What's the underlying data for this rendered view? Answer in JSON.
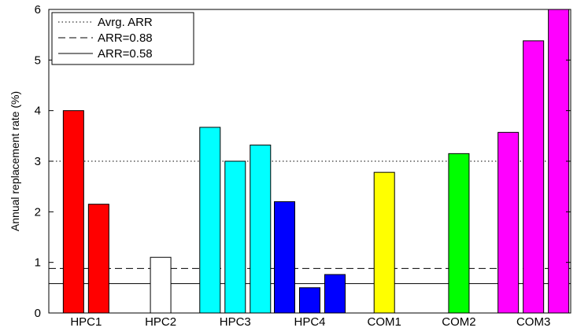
{
  "chart_data": {
    "type": "bar",
    "ylabel": "Annual replacement rate (%)",
    "xlabel": "",
    "ylim": [
      0,
      6
    ],
    "yticks": [
      0,
      1,
      2,
      3,
      4,
      5,
      6
    ],
    "grid": false,
    "legend_position": "top-left",
    "groups": [
      {
        "label": "HPC1",
        "color": "#ff0000",
        "values": [
          4.0,
          2.15
        ]
      },
      {
        "label": "HPC2",
        "color": "#ffffff",
        "values": [
          1.1
        ]
      },
      {
        "label": "HPC3",
        "color": "#00ffff",
        "values": [
          3.67,
          3.0,
          3.32
        ]
      },
      {
        "label": "HPC4",
        "color": "#0000ff",
        "values": [
          2.2,
          0.5,
          0.76
        ]
      },
      {
        "label": "COM1",
        "color": "#ffff00",
        "values": [
          2.78
        ]
      },
      {
        "label": "COM2",
        "color": "#00ff00",
        "values": [
          3.15
        ]
      },
      {
        "label": "COM3",
        "color": "#ff00ff",
        "values": [
          3.57,
          5.38,
          6.0
        ]
      }
    ],
    "reference_lines": [
      {
        "name": "Avrg. ARR",
        "value": 3.0,
        "style": "dotted"
      },
      {
        "name": "ARR=0.88",
        "value": 0.88,
        "style": "dashed"
      },
      {
        "name": "ARR=0.58",
        "value": 0.58,
        "style": "solid"
      }
    ]
  }
}
